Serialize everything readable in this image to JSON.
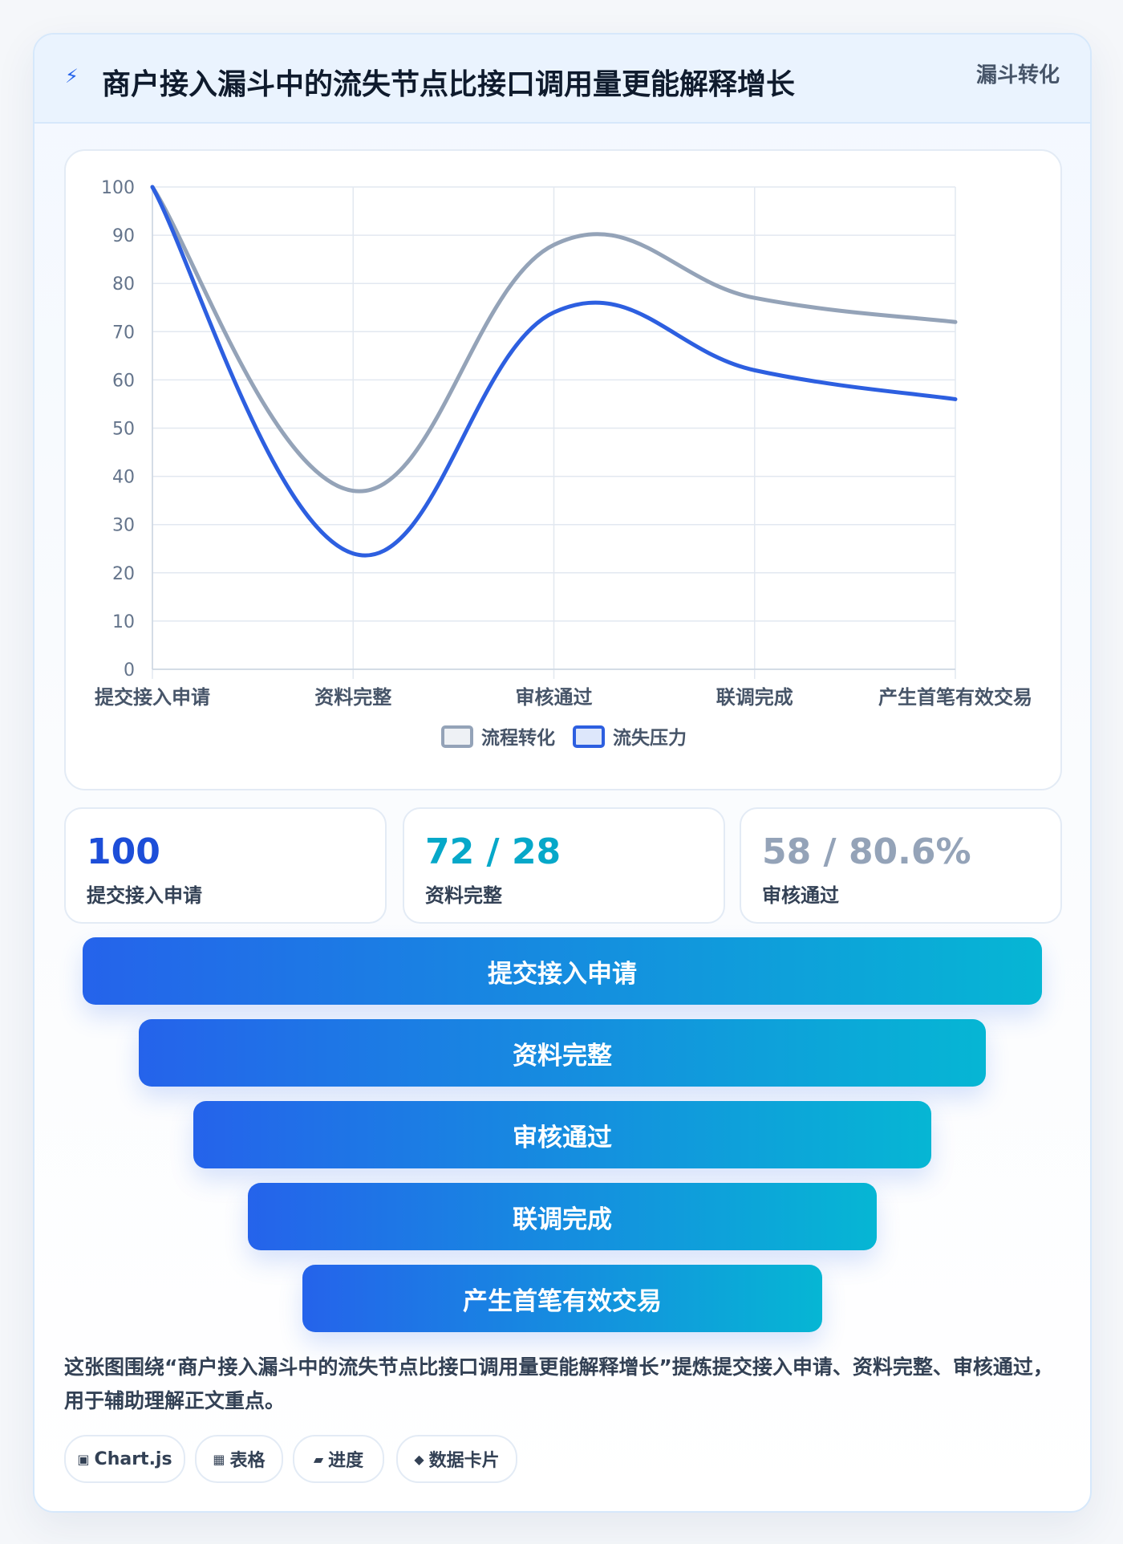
{
  "header": {
    "icon": "lightning-icon",
    "title": "商户接入漏斗中的流失节点比接口调用量更能解释增长",
    "tag": "漏斗转化"
  },
  "chart_data": {
    "type": "line",
    "categories": [
      "提交接入申请",
      "资料完整",
      "审核通过",
      "联调完成",
      "产生首笔有效交易"
    ],
    "series": [
      {
        "name": "流程转化",
        "values": [
          100,
          37,
          88,
          77,
          72
        ],
        "color": "#94a3b8"
      },
      {
        "name": "流失压力",
        "values": [
          100,
          24,
          74,
          62,
          56
        ],
        "color": "#2d5fe0"
      }
    ],
    "ylim": [
      0,
      100
    ],
    "yticks": [
      0,
      10,
      20,
      30,
      40,
      50,
      60,
      70,
      80,
      90,
      100
    ],
    "grid": true,
    "legend_position": "bottom"
  },
  "stats": [
    {
      "value": "100",
      "label": "提交接入申请",
      "color": "#1d4ed8"
    },
    {
      "value": "72 / 28",
      "label": "资料完整",
      "color": "#06a8c9"
    },
    {
      "value": "58 / 80.6%",
      "label": "审核通过",
      "color": "#94a3b8"
    }
  ],
  "funnel": [
    "提交接入申请",
    "资料完整",
    "审核通过",
    "联调完成",
    "产生首笔有效交易"
  ],
  "caption": "这张图围绕“商户接入漏斗中的流失节点比接口调用量更能解释增长”提炼提交接入申请、资料完整、审核通过，用于辅助理解正文重点。",
  "chips": [
    {
      "icon": "chart-icon",
      "glyph": "▣",
      "label": "Chart.js"
    },
    {
      "icon": "table-icon",
      "glyph": "▦",
      "label": "表格"
    },
    {
      "icon": "progress-icon",
      "glyph": "▰",
      "label": "进度"
    },
    {
      "icon": "diamond-icon",
      "glyph": "◆",
      "label": "数据卡片"
    }
  ]
}
